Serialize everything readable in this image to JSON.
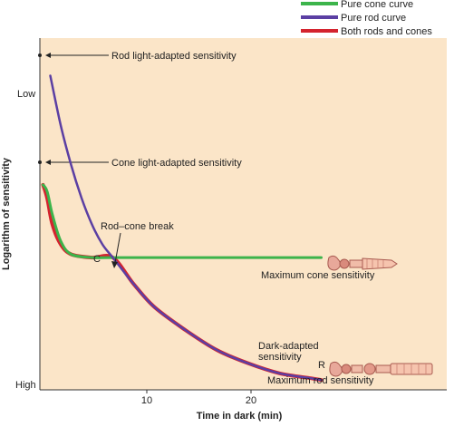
{
  "chart_data": {
    "type": "line",
    "xlabel": "Time in dark (min)",
    "ylabel": "Logarithm of sensitivity",
    "x_ticks": [
      10,
      20
    ],
    "y_ticks": [
      "Low",
      "High"
    ],
    "xlim": [
      0,
      38
    ],
    "ylim_note": "log scale, Low at top, High at bottom",
    "series": [
      {
        "name": "Pure cone curve",
        "color": "#3cb44b",
        "points": [
          [
            0.3,
            0.62
          ],
          [
            0.7,
            0.6
          ],
          [
            1.2,
            0.53
          ],
          [
            2,
            0.45
          ],
          [
            3,
            0.41
          ],
          [
            5,
            0.4
          ],
          [
            7,
            0.4
          ],
          [
            12,
            0.4
          ],
          [
            20,
            0.4
          ],
          [
            27,
            0.4
          ]
        ]
      },
      {
        "name": "Pure rod curve",
        "color": "#5b3fa3",
        "points": [
          [
            1,
            0.95
          ],
          [
            2,
            0.8
          ],
          [
            3,
            0.68
          ],
          [
            4,
            0.58
          ],
          [
            5,
            0.5
          ],
          [
            6,
            0.44
          ],
          [
            7,
            0.4
          ],
          [
            9,
            0.32
          ],
          [
            11,
            0.25
          ],
          [
            14,
            0.18
          ],
          [
            17,
            0.12
          ],
          [
            20,
            0.08
          ],
          [
            23,
            0.05
          ],
          [
            26,
            0.035
          ],
          [
            27,
            0.03
          ]
        ]
      },
      {
        "name": "Both rods and cones",
        "color": "#d4232e",
        "points": [
          [
            0.3,
            0.62
          ],
          [
            0.7,
            0.58
          ],
          [
            1.2,
            0.5
          ],
          [
            2,
            0.44
          ],
          [
            3,
            0.41
          ],
          [
            5,
            0.4
          ],
          [
            7,
            0.4
          ],
          [
            9,
            0.32
          ],
          [
            11,
            0.25
          ],
          [
            14,
            0.18
          ],
          [
            17,
            0.12
          ],
          [
            20,
            0.08
          ],
          [
            23,
            0.05
          ],
          [
            26,
            0.035
          ],
          [
            27,
            0.03
          ]
        ]
      }
    ],
    "annotations": {
      "rod_light_adapted": "Rod light-adapted sensitivity",
      "cone_light_adapted": "Cone light-adapted sensitivity",
      "rod_cone_break": "Rod–cone break",
      "c_label": "C",
      "r_label": "R",
      "max_cone": "Maximum cone sensitivity",
      "dark_adapted_1": "Dark-adapted",
      "dark_adapted_2": "sensitivity",
      "max_rod": "Maximum rod sensitivity"
    },
    "background": "#fbe5c8"
  }
}
